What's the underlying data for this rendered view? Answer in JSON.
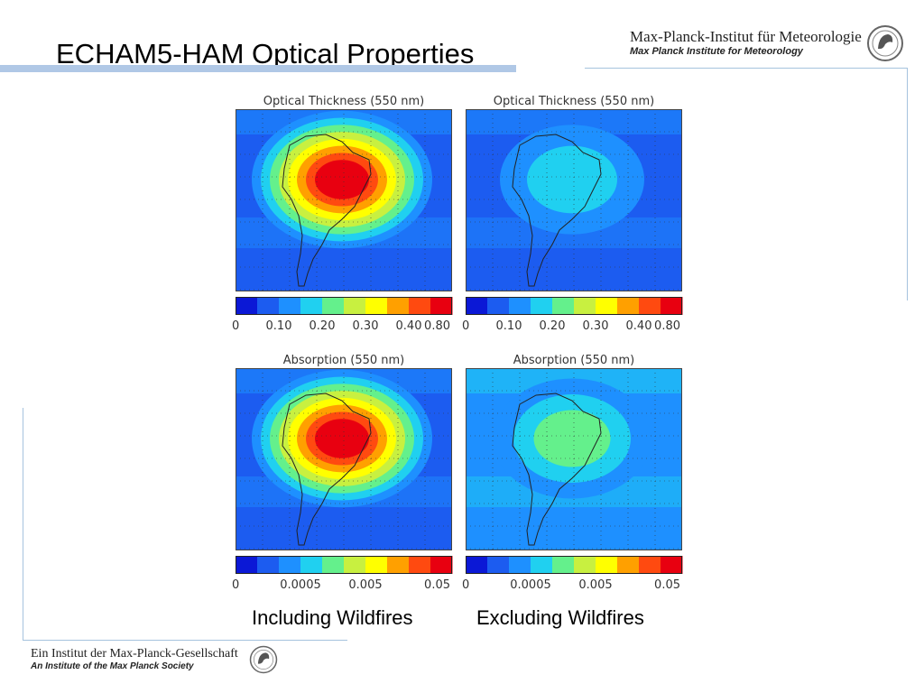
{
  "slide": {
    "title": "ECHAM5-HAM Optical Properties",
    "institute_name": "Max-Planck-Institut für Meteorologie",
    "institute_sub": "Max Planck Institute for Meteorology",
    "society_name": "Ein Institut der Max-Planck-Gesellschaft",
    "society_sub": "An Institute of the Max Planck Society",
    "caption_left": "Including Wildfires",
    "caption_right": "Excluding Wildfires"
  },
  "colors": {
    "title_bar": "#b0c8e6",
    "rule": "#a6c3de",
    "palette": [
      "#0b18d6",
      "#1c5cf0",
      "#1e90ff",
      "#20d0f0",
      "#64f08c",
      "#c8f040",
      "#ffff00",
      "#ffa000",
      "#ff4a10",
      "#e80010"
    ]
  },
  "chart_data": [
    {
      "type": "heatmap",
      "title": "Optical Thickness (550 nm)",
      "colorbar_ticks": [
        "0",
        "0.10",
        "0.20",
        "0.30",
        "0.40",
        "0.80"
      ],
      "scenario": "Including Wildfires",
      "max_level": 9
    },
    {
      "type": "heatmap",
      "title": "Optical Thickness (550 nm)",
      "colorbar_ticks": [
        "0",
        "0.10",
        "0.20",
        "0.30",
        "0.40",
        "0.80"
      ],
      "scenario": "Excluding Wildfires",
      "max_level": 3
    },
    {
      "type": "heatmap",
      "title": "Absorption (550 nm)",
      "colorbar_ticks": [
        "0",
        "0.0005",
        "0.005",
        "0.05"
      ],
      "scenario": "Including Wildfires",
      "max_level": 9
    },
    {
      "type": "heatmap",
      "title": "Absorption (550 nm)",
      "colorbar_ticks": [
        "0",
        "0.0005",
        "0.005",
        "0.05"
      ],
      "scenario": "Excluding Wildfires",
      "max_level": 4
    }
  ]
}
